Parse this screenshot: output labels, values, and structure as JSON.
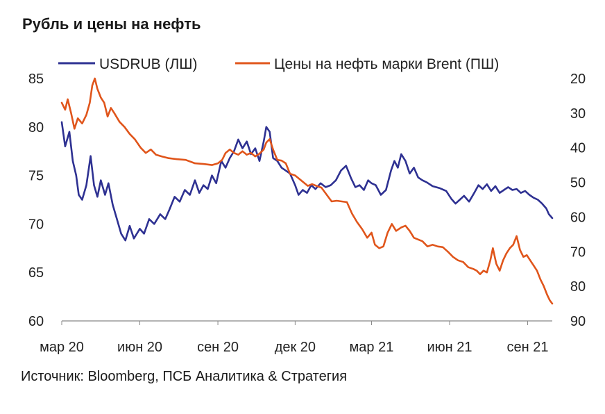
{
  "title": "Рубль и цены на нефть",
  "source": "Источник: Bloomberg, ПСБ Аналитика & Стратегия",
  "colors": {
    "usdrub": "#2e3192",
    "brent": "#e0551b",
    "axis": "#888888"
  },
  "chart_data": {
    "type": "line",
    "title": "Рубль и цены на нефть",
    "x_ticks": [
      "мар 20",
      "июн 20",
      "сен 20",
      "дек 20",
      "мар 21",
      "июн 21",
      "сен 21"
    ],
    "x_tick_dates": [
      "2020-03-01",
      "2020-06-01",
      "2020-09-01",
      "2020-12-01",
      "2021-03-01",
      "2021-06-01",
      "2021-09-01"
    ],
    "xlim": [
      "2020-03-01",
      "2021-09-30"
    ],
    "left_axis": {
      "ylim": [
        60,
        85
      ],
      "ticks": [
        "85",
        "80",
        "75",
        "70",
        "65",
        "60"
      ],
      "inverted": false
    },
    "right_axis": {
      "ylim": [
        20,
        90
      ],
      "ticks": [
        "20",
        "30",
        "40",
        "50",
        "60",
        "70",
        "80",
        "90"
      ],
      "inverted": true
    },
    "legend": {
      "placement": "top"
    },
    "series": [
      {
        "name": "USDRUB (ЛШ)",
        "axis": "left",
        "points": [
          [
            "2020-03-01",
            80.5
          ],
          [
            "2020-03-05",
            78.0
          ],
          [
            "2020-03-10",
            79.5
          ],
          [
            "2020-03-14",
            76.5
          ],
          [
            "2020-03-18",
            75.0
          ],
          [
            "2020-03-21",
            73.0
          ],
          [
            "2020-03-25",
            72.5
          ],
          [
            "2020-03-30",
            74.0
          ],
          [
            "2020-04-04",
            77.0
          ],
          [
            "2020-04-08",
            74.0
          ],
          [
            "2020-04-12",
            72.8
          ],
          [
            "2020-04-16",
            74.5
          ],
          [
            "2020-04-21",
            73.0
          ],
          [
            "2020-04-25",
            74.2
          ],
          [
            "2020-04-30",
            72.0
          ],
          [
            "2020-05-05",
            70.5
          ],
          [
            "2020-05-10",
            69.0
          ],
          [
            "2020-05-15",
            68.3
          ],
          [
            "2020-05-20",
            69.8
          ],
          [
            "2020-05-25",
            68.5
          ],
          [
            "2020-06-01",
            69.5
          ],
          [
            "2020-06-06",
            69.0
          ],
          [
            "2020-06-12",
            70.5
          ],
          [
            "2020-06-18",
            70.0
          ],
          [
            "2020-06-25",
            71.0
          ],
          [
            "2020-07-01",
            70.5
          ],
          [
            "2020-07-06",
            71.5
          ],
          [
            "2020-07-12",
            72.8
          ],
          [
            "2020-07-18",
            72.3
          ],
          [
            "2020-07-24",
            73.5
          ],
          [
            "2020-07-30",
            73.0
          ],
          [
            "2020-08-05",
            74.5
          ],
          [
            "2020-08-10",
            73.2
          ],
          [
            "2020-08-15",
            74.0
          ],
          [
            "2020-08-20",
            73.6
          ],
          [
            "2020-08-25",
            75.0
          ],
          [
            "2020-08-30",
            74.2
          ],
          [
            "2020-09-05",
            76.5
          ],
          [
            "2020-09-10",
            75.8
          ],
          [
            "2020-09-15",
            76.8
          ],
          [
            "2020-09-20",
            77.5
          ],
          [
            "2020-09-25",
            78.7
          ],
          [
            "2020-09-30",
            77.8
          ],
          [
            "2020-10-05",
            78.5
          ],
          [
            "2020-10-10",
            77.2
          ],
          [
            "2020-10-15",
            77.8
          ],
          [
            "2020-10-20",
            76.5
          ],
          [
            "2020-10-25",
            78.5
          ],
          [
            "2020-10-28",
            80.0
          ],
          [
            "2020-11-01",
            79.5
          ],
          [
            "2020-11-05",
            76.8
          ],
          [
            "2020-11-10",
            76.5
          ],
          [
            "2020-11-15",
            75.8
          ],
          [
            "2020-11-20",
            75.5
          ],
          [
            "2020-11-25",
            75.2
          ],
          [
            "2020-12-01",
            74.0
          ],
          [
            "2020-12-05",
            73.0
          ],
          [
            "2020-12-10",
            73.5
          ],
          [
            "2020-12-15",
            73.2
          ],
          [
            "2020-12-20",
            74.0
          ],
          [
            "2020-12-25",
            73.6
          ],
          [
            "2020-12-31",
            74.2
          ],
          [
            "2021-01-06",
            73.8
          ],
          [
            "2021-01-12",
            74.0
          ],
          [
            "2021-01-18",
            74.5
          ],
          [
            "2021-01-24",
            75.5
          ],
          [
            "2021-01-30",
            76.0
          ],
          [
            "2021-02-05",
            74.7
          ],
          [
            "2021-02-10",
            73.8
          ],
          [
            "2021-02-15",
            74.0
          ],
          [
            "2021-02-20",
            73.5
          ],
          [
            "2021-02-25",
            74.5
          ],
          [
            "2021-03-01",
            74.2
          ],
          [
            "2021-03-06",
            74.0
          ],
          [
            "2021-03-12",
            73.0
          ],
          [
            "2021-03-18",
            73.5
          ],
          [
            "2021-03-24",
            75.5
          ],
          [
            "2021-03-28",
            76.5
          ],
          [
            "2021-04-01",
            75.8
          ],
          [
            "2021-04-05",
            77.2
          ],
          [
            "2021-04-10",
            76.5
          ],
          [
            "2021-04-15",
            75.2
          ],
          [
            "2021-04-20",
            75.8
          ],
          [
            "2021-04-25",
            74.8
          ],
          [
            "2021-04-30",
            74.5
          ],
          [
            "2021-05-05",
            74.3
          ],
          [
            "2021-05-12",
            73.9
          ],
          [
            "2021-05-20",
            73.7
          ],
          [
            "2021-05-28",
            73.4
          ],
          [
            "2021-06-03",
            72.6
          ],
          [
            "2021-06-08",
            72.1
          ],
          [
            "2021-06-13",
            72.5
          ],
          [
            "2021-06-18",
            72.9
          ],
          [
            "2021-06-24",
            72.3
          ],
          [
            "2021-06-30",
            73.2
          ],
          [
            "2021-07-05",
            74.0
          ],
          [
            "2021-07-10",
            73.6
          ],
          [
            "2021-07-15",
            74.1
          ],
          [
            "2021-07-20",
            73.4
          ],
          [
            "2021-07-25",
            73.9
          ],
          [
            "2021-07-30",
            73.2
          ],
          [
            "2021-08-04",
            73.5
          ],
          [
            "2021-08-09",
            73.8
          ],
          [
            "2021-08-14",
            73.5
          ],
          [
            "2021-08-19",
            73.6
          ],
          [
            "2021-08-24",
            73.2
          ],
          [
            "2021-08-29",
            73.4
          ],
          [
            "2021-09-03",
            73.0
          ],
          [
            "2021-09-08",
            72.7
          ],
          [
            "2021-09-13",
            72.5
          ],
          [
            "2021-09-18",
            72.1
          ],
          [
            "2021-09-23",
            71.6
          ],
          [
            "2021-09-26",
            71.0
          ],
          [
            "2021-09-30",
            70.6
          ]
        ]
      },
      {
        "name": "Цены на нефть марки Brent (ПШ)",
        "axis": "right",
        "points": [
          [
            "2020-03-01",
            27.0
          ],
          [
            "2020-03-05",
            29.0
          ],
          [
            "2020-03-08",
            26.0
          ],
          [
            "2020-03-12",
            30.0
          ],
          [
            "2020-03-16",
            34.5
          ],
          [
            "2020-03-20",
            31.5
          ],
          [
            "2020-03-25",
            33.0
          ],
          [
            "2020-03-30",
            30.5
          ],
          [
            "2020-04-03",
            27.0
          ],
          [
            "2020-04-06",
            22.0
          ],
          [
            "2020-04-09",
            20.0
          ],
          [
            "2020-04-12",
            23.0
          ],
          [
            "2020-04-16",
            25.5
          ],
          [
            "2020-04-20",
            27.0
          ],
          [
            "2020-04-24",
            31.0
          ],
          [
            "2020-04-28",
            28.5
          ],
          [
            "2020-05-02",
            30.0
          ],
          [
            "2020-05-08",
            32.5
          ],
          [
            "2020-05-14",
            34.0
          ],
          [
            "2020-05-20",
            36.0
          ],
          [
            "2020-05-26",
            37.5
          ],
          [
            "2020-06-02",
            40.0
          ],
          [
            "2020-06-08",
            41.5
          ],
          [
            "2020-06-14",
            40.5
          ],
          [
            "2020-06-20",
            42.0
          ],
          [
            "2020-06-27",
            42.5
          ],
          [
            "2020-07-05",
            43.0
          ],
          [
            "2020-07-15",
            43.3
          ],
          [
            "2020-07-25",
            43.5
          ],
          [
            "2020-08-05",
            44.5
          ],
          [
            "2020-08-15",
            44.7
          ],
          [
            "2020-08-25",
            45.0
          ],
          [
            "2020-09-01",
            44.5
          ],
          [
            "2020-09-06",
            43.5
          ],
          [
            "2020-09-10",
            41.5
          ],
          [
            "2020-09-15",
            40.5
          ],
          [
            "2020-09-20",
            41.5
          ],
          [
            "2020-09-25",
            42.0
          ],
          [
            "2020-09-30",
            41.0
          ],
          [
            "2020-10-05",
            42.0
          ],
          [
            "2020-10-10",
            41.5
          ],
          [
            "2020-10-15",
            42.5
          ],
          [
            "2020-10-20",
            41.7
          ],
          [
            "2020-10-25",
            40.5
          ],
          [
            "2020-10-28",
            38.5
          ],
          [
            "2020-11-01",
            37.5
          ],
          [
            "2020-11-05",
            40.5
          ],
          [
            "2020-11-10",
            43.5
          ],
          [
            "2020-11-15",
            43.7
          ],
          [
            "2020-11-20",
            44.5
          ],
          [
            "2020-11-25",
            47.5
          ],
          [
            "2020-12-01",
            48.0
          ],
          [
            "2020-12-06",
            49.0
          ],
          [
            "2020-12-11",
            50.0
          ],
          [
            "2020-12-16",
            51.0
          ],
          [
            "2020-12-21",
            50.5
          ],
          [
            "2020-12-26",
            51.0
          ],
          [
            "2021-01-01",
            51.5
          ],
          [
            "2021-01-07",
            53.5
          ],
          [
            "2021-01-13",
            55.5
          ],
          [
            "2021-01-19",
            55.3
          ],
          [
            "2021-01-25",
            55.5
          ],
          [
            "2021-01-31",
            55.7
          ],
          [
            "2021-02-06",
            59.0
          ],
          [
            "2021-02-12",
            61.5
          ],
          [
            "2021-02-18",
            63.5
          ],
          [
            "2021-02-24",
            66.0
          ],
          [
            "2021-03-01",
            64.5
          ],
          [
            "2021-03-05",
            68.0
          ],
          [
            "2021-03-10",
            69.0
          ],
          [
            "2021-03-15",
            68.5
          ],
          [
            "2021-03-20",
            64.5
          ],
          [
            "2021-03-25",
            62.0
          ],
          [
            "2021-03-30",
            64.0
          ],
          [
            "2021-04-05",
            63.0
          ],
          [
            "2021-04-10",
            62.5
          ],
          [
            "2021-04-15",
            64.0
          ],
          [
            "2021-04-20",
            66.0
          ],
          [
            "2021-04-25",
            66.5
          ],
          [
            "2021-04-30",
            67.0
          ],
          [
            "2021-05-06",
            68.5
          ],
          [
            "2021-05-12",
            68.0
          ],
          [
            "2021-05-18",
            68.5
          ],
          [
            "2021-05-24",
            68.7
          ],
          [
            "2021-05-30",
            70.0
          ],
          [
            "2021-06-05",
            71.5
          ],
          [
            "2021-06-11",
            72.5
          ],
          [
            "2021-06-17",
            73.0
          ],
          [
            "2021-06-23",
            74.5
          ],
          [
            "2021-06-29",
            75.0
          ],
          [
            "2021-07-03",
            75.5
          ],
          [
            "2021-07-07",
            76.5
          ],
          [
            "2021-07-11",
            75.5
          ],
          [
            "2021-07-15",
            76.0
          ],
          [
            "2021-07-19",
            72.5
          ],
          [
            "2021-07-22",
            69.0
          ],
          [
            "2021-07-26",
            73.5
          ],
          [
            "2021-07-30",
            75.5
          ],
          [
            "2021-08-03",
            72.5
          ],
          [
            "2021-08-07",
            70.5
          ],
          [
            "2021-08-11",
            69.0
          ],
          [
            "2021-08-15",
            68.0
          ],
          [
            "2021-08-19",
            65.5
          ],
          [
            "2021-08-23",
            69.5
          ],
          [
            "2021-08-27",
            71.5
          ],
          [
            "2021-08-31",
            71.0
          ],
          [
            "2021-09-04",
            72.5
          ],
          [
            "2021-09-08",
            74.0
          ],
          [
            "2021-09-12",
            75.5
          ],
          [
            "2021-09-16",
            78.0
          ],
          [
            "2021-09-20",
            80.0
          ],
          [
            "2021-09-24",
            82.5
          ],
          [
            "2021-09-27",
            84.0
          ],
          [
            "2021-09-30",
            85.0
          ]
        ]
      }
    ]
  }
}
